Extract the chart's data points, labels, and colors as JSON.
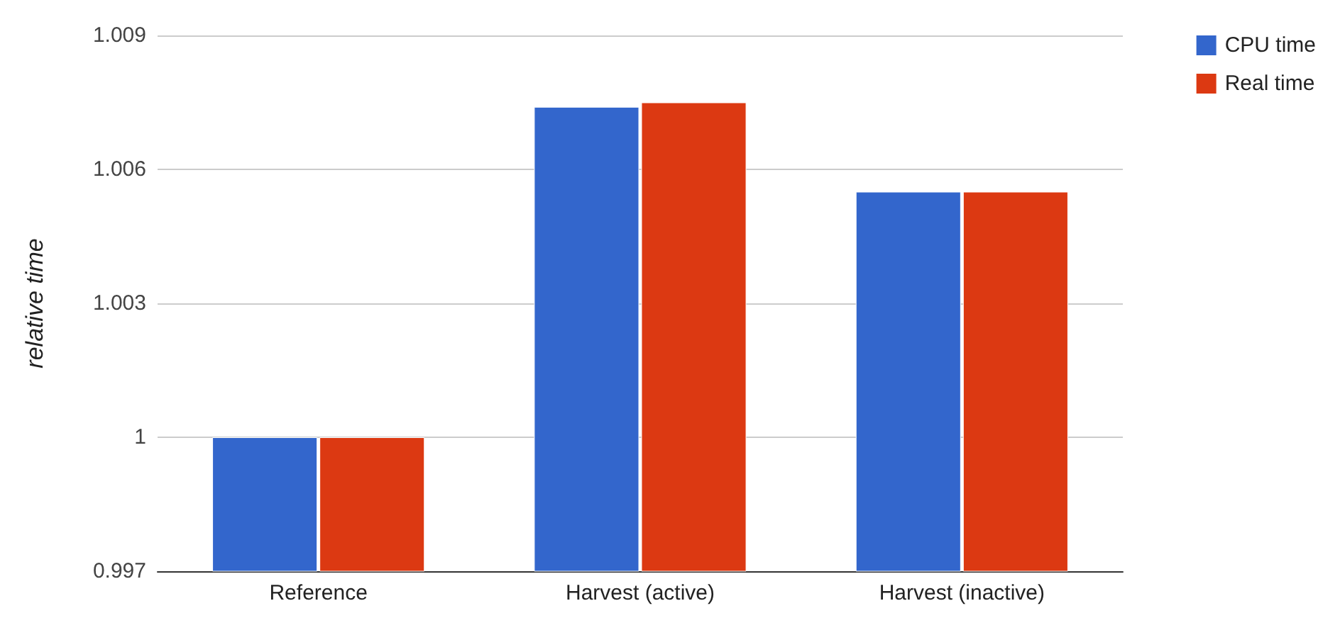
{
  "chart_data": {
    "type": "bar",
    "ylabel": "relative time",
    "categories": [
      "Reference",
      "Harvest (active)",
      "Harvest (inactive)"
    ],
    "series": [
      {
        "name": "CPU time",
        "color": "#3366cc",
        "values": [
          1.0,
          1.0074,
          1.0055
        ]
      },
      {
        "name": "Real time",
        "color": "#dc3912",
        "values": [
          1.0,
          1.0075,
          1.0055
        ]
      }
    ],
    "ylim": [
      0.997,
      1.009
    ],
    "yticks": [
      0.997,
      1,
      1.003,
      1.006,
      1.009
    ],
    "grid": "y",
    "legend": "top right"
  }
}
